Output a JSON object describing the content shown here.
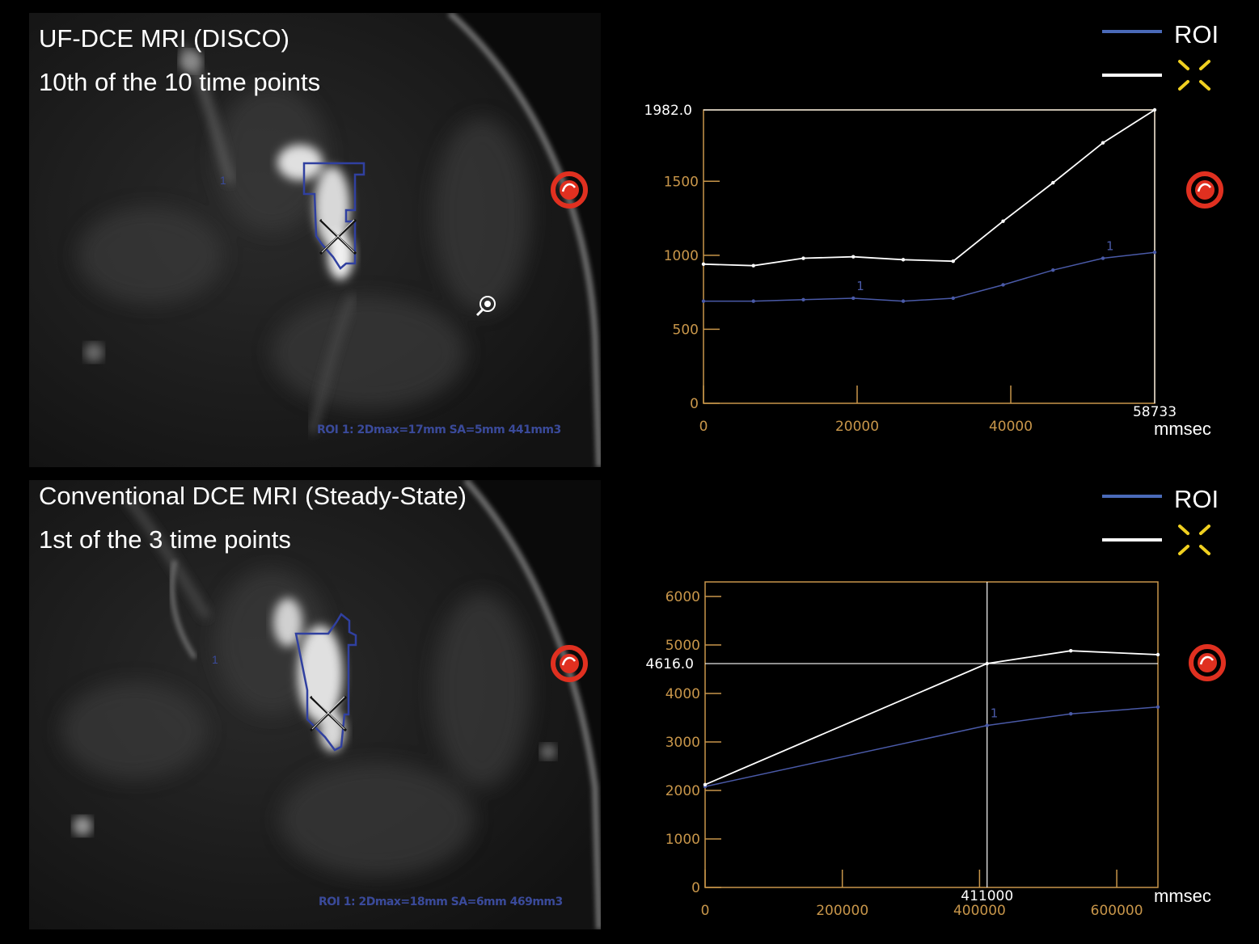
{
  "panels": [
    {
      "caption_line1": "UF-DCE MRI (DISCO)",
      "caption_line2": "10th of the 10 time points",
      "roi_info": "ROI 1: 2Dmax=17mm SA=5mm 441mm3",
      "roi_number": "1"
    },
    {
      "caption_line1": "Conventional DCE MRI (Steady-State)",
      "caption_line2": "1st of the 3 time points",
      "roi_info": "ROI 1: 2Dmax=18mm SA=6mm 469mm3",
      "roi_number": "1"
    }
  ],
  "legend": {
    "roi_label": "ROI",
    "roi_color": "#4a6ab8",
    "cursor_color": "#ffffff",
    "cursor_icon": "yellow-cross-cursor-icon"
  },
  "colors": {
    "frame": "#c8964a",
    "roi_curve": "#4a5aa8",
    "cursor_curve": "#ffffff"
  },
  "chart_data": [
    {
      "type": "line",
      "xlabel": "mmsec",
      "xlim": [
        0,
        58733
      ],
      "ylim": [
        0,
        1982
      ],
      "x_ticks": [
        0,
        20000,
        40000
      ],
      "x_tick_labels": [
        "0",
        "20000",
        "40000"
      ],
      "y_ticks": [
        0,
        500,
        1000,
        1500
      ],
      "y_tick_labels": [
        "0",
        "500",
        "1000",
        "1500"
      ],
      "cursor_x": 58733,
      "cursor_x_label": "58733",
      "cursor_y": 1982.0,
      "cursor_y_label": "1982.0",
      "series_label": "1",
      "series": [
        {
          "name": "ROI",
          "x": [
            0,
            6500,
            13000,
            19500,
            26000,
            32500,
            39000,
            45500,
            52000,
            58733
          ],
          "y": [
            690,
            690,
            700,
            710,
            690,
            710,
            800,
            900,
            980,
            1020
          ]
        },
        {
          "name": "",
          "x": [
            0,
            6500,
            13000,
            19500,
            26000,
            32500,
            39000,
            45500,
            52000,
            58733
          ],
          "y": [
            940,
            930,
            980,
            990,
            970,
            960,
            1230,
            1490,
            1760,
            1982
          ]
        }
      ]
    },
    {
      "type": "line",
      "xlabel": "mmsec",
      "xlim": [
        0,
        660000
      ],
      "ylim": [
        0,
        6300
      ],
      "x_ticks": [
        0,
        200000,
        400000,
        600000
      ],
      "x_tick_labels": [
        "0",
        "200000",
        "400000",
        "600000"
      ],
      "y_ticks": [
        0,
        1000,
        2000,
        3000,
        4000,
        5000,
        6000
      ],
      "y_tick_labels": [
        "0",
        "1000",
        "2000",
        "3000",
        "4000",
        "5000",
        "6000"
      ],
      "cursor_x": 411000,
      "cursor_x_label": "411000",
      "cursor_y": 4616.0,
      "cursor_y_label": "4616.0",
      "series_label": "1",
      "series": [
        {
          "name": "ROI",
          "x": [
            0,
            411000,
            533000,
            660000
          ],
          "y": [
            2080,
            3340,
            3580,
            3720
          ]
        },
        {
          "name": "",
          "x": [
            0,
            411000,
            533000,
            660000
          ],
          "y": [
            2120,
            4616,
            4880,
            4800
          ]
        }
      ]
    }
  ]
}
